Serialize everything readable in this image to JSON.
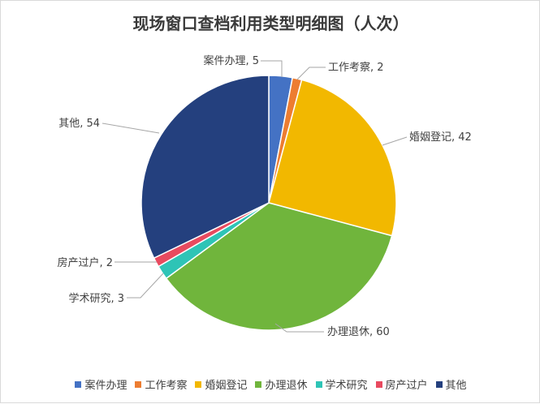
{
  "chart_data": {
    "type": "pie",
    "title": "现场窗口查档利用类型明细图（人次）",
    "categories": [
      "案件办理",
      "工作考察",
      "婚姻登记",
      "办理退休",
      "学术研究",
      "房产过户",
      "其他"
    ],
    "values": [
      5,
      2,
      42,
      60,
      3,
      2,
      54
    ],
    "colors": [
      "#4472c4",
      "#ed7d31",
      "#f2b800",
      "#70b53c",
      "#2ec4b6",
      "#e84a5f",
      "#24407e"
    ],
    "data_labels": [
      "案件办理, 5",
      "工作考察, 2",
      "婚姻登记, 42",
      "办理退休, 60",
      "学术研究, 3",
      "房产过户, 2",
      "其他, 54"
    ],
    "start_angle_deg": 0,
    "direction": "clockwise",
    "legend": {
      "position": "bottom"
    }
  }
}
